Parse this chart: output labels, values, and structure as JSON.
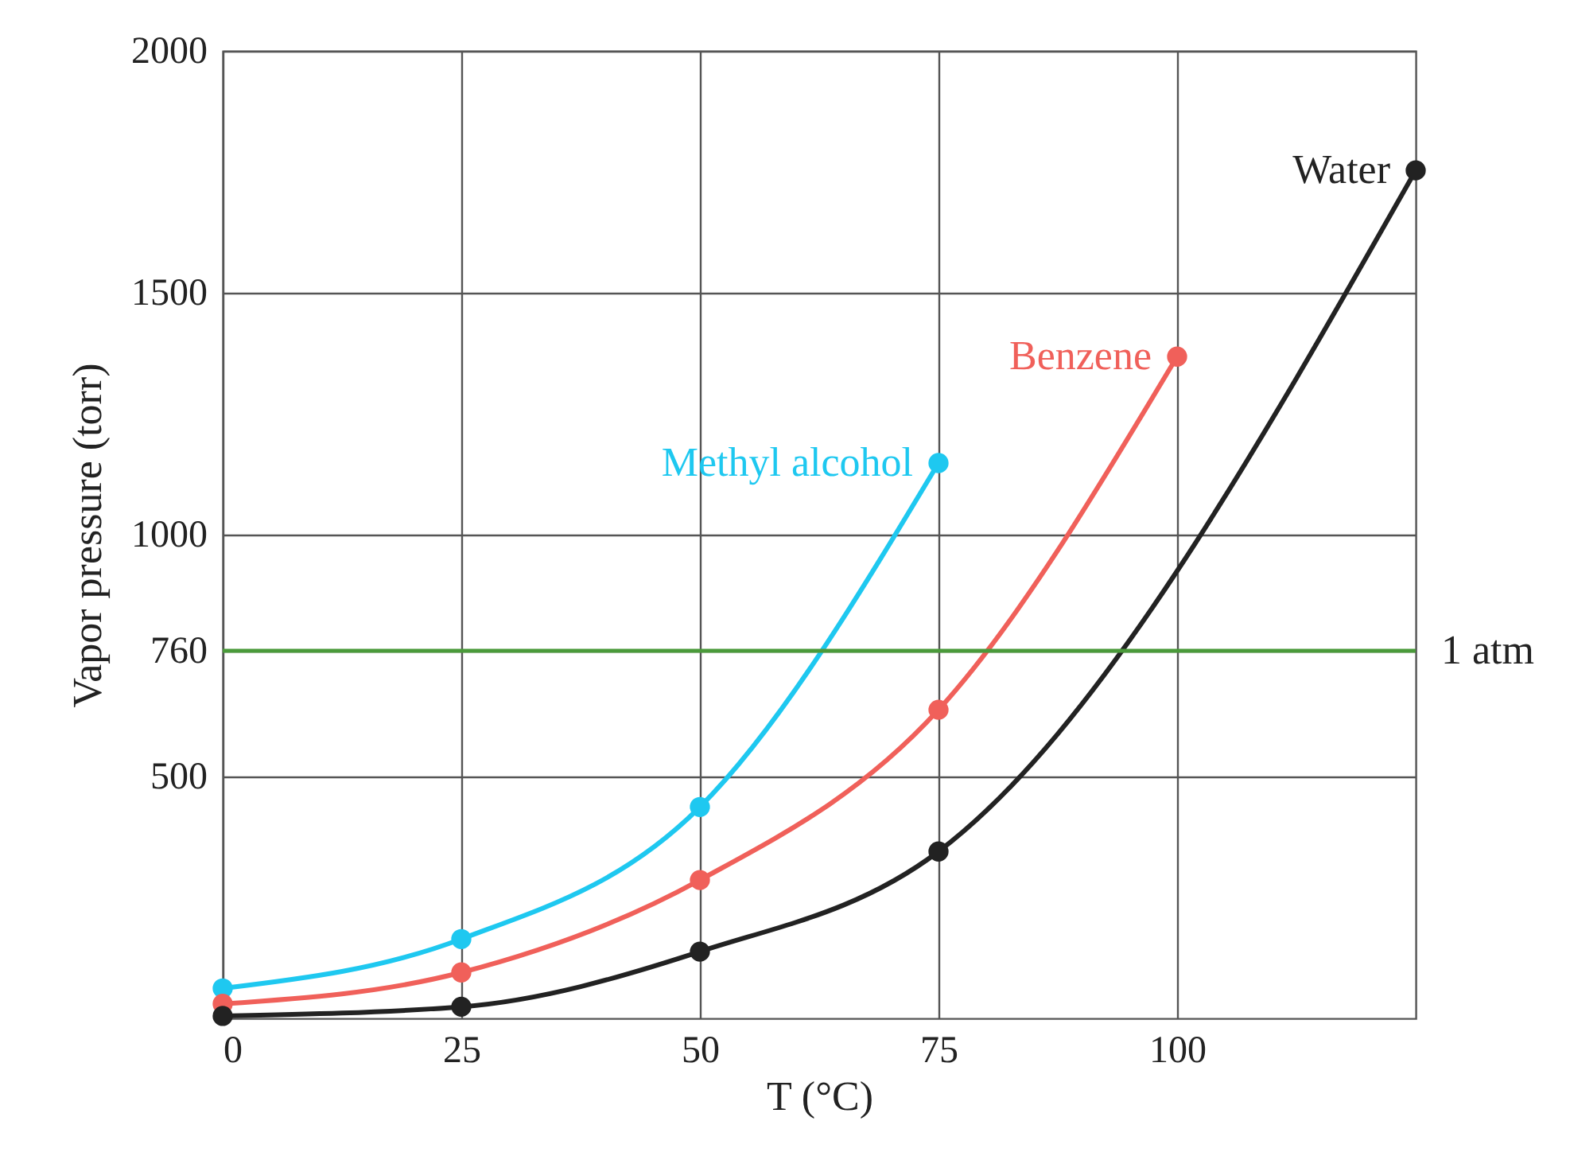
{
  "chart_data": {
    "type": "line",
    "xlabel": "T (°C)",
    "ylabel": "Vapor pressure (torr)",
    "x": [
      0,
      25,
      50,
      75,
      100,
      125
    ],
    "series": [
      {
        "name": "Methyl alcohol",
        "color": "#1ec8f0",
        "values": [
          62,
          164,
          437,
          1148,
          null,
          null
        ]
      },
      {
        "name": "Benzene",
        "color": "#f0605a",
        "values": [
          30,
          95,
          286,
          638,
          1368,
          null
        ]
      },
      {
        "name": "Water",
        "color": "#222222",
        "values": [
          5,
          24,
          138,
          345,
          null,
          1753
        ]
      }
    ],
    "xlim": [
      0,
      125
    ],
    "xticks": [
      0,
      25,
      50,
      75,
      100
    ],
    "ylim": [
      0,
      2000
    ],
    "yticks": [
      500,
      760,
      1000,
      1500,
      2000
    ],
    "grid": true,
    "marker": "circle",
    "line_style": "solid",
    "legend": false,
    "ref_lines": [
      {
        "axis": "y",
        "value": 760,
        "label": "1 atm",
        "color": "#4a9a3a"
      }
    ]
  }
}
